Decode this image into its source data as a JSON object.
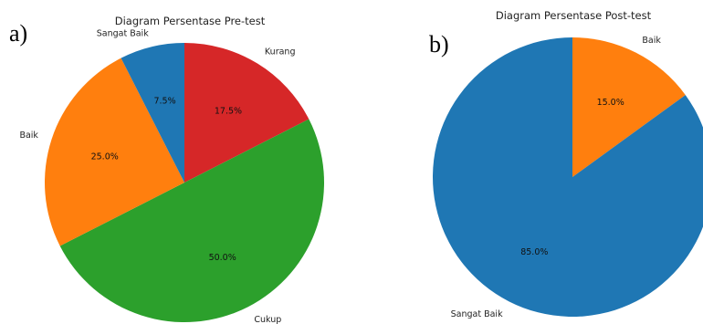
{
  "chart_data": [
    {
      "type": "pie",
      "panel_label": "a)",
      "title": "Diagram Persentase Pre-test",
      "slices": [
        {
          "label": "Kurang",
          "value": 17.5,
          "value_label": "17.5%",
          "color": "#d62728"
        },
        {
          "label": "Cukup",
          "value": 50.0,
          "value_label": "50.0%",
          "color": "#2ca02c"
        },
        {
          "label": "Baik",
          "value": 25.0,
          "value_label": "25.0%",
          "color": "#ff7f0e"
        },
        {
          "label": "Sangat Baik",
          "value": 7.5,
          "value_label": "7.5%",
          "color": "#1f77b4"
        }
      ]
    },
    {
      "type": "pie",
      "panel_label": "b)",
      "title": "Diagram Persentase Post-test",
      "slices": [
        {
          "label": "Baik",
          "value": 15.0,
          "value_label": "15.0%",
          "color": "#ff7f0e"
        },
        {
          "label": "Sangat Baik",
          "value": 85.0,
          "value_label": "85.0%",
          "color": "#1f77b4"
        }
      ]
    }
  ]
}
